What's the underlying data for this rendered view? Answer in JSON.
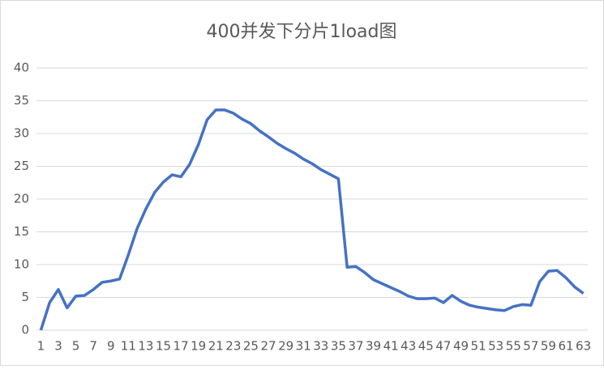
{
  "chart_data": {
    "type": "line",
    "title": "400并发下分片1load图",
    "categories": [
      "1",
      null,
      "3",
      null,
      "5",
      null,
      "7",
      null,
      "9",
      null,
      "11",
      null,
      "13",
      null,
      "15",
      null,
      "17",
      null,
      "19",
      null,
      "21",
      null,
      "23",
      null,
      "25",
      null,
      "27",
      null,
      "29",
      null,
      "31",
      null,
      "33",
      null,
      "35",
      null,
      "37",
      null,
      "39",
      null,
      "41",
      null,
      "43",
      null,
      "45",
      null,
      "47",
      null,
      "49",
      null,
      "51",
      null,
      "53",
      null,
      "55",
      null,
      "57",
      null,
      "59",
      null,
      "61",
      null,
      "63"
    ],
    "series": [
      {
        "name": "load",
        "color": "#4472c4",
        "values": [
          0,
          4.2,
          6.2,
          3.4,
          5.2,
          5.3,
          6.2,
          7.3,
          7.5,
          7.8,
          11.5,
          15.5,
          18.5,
          21,
          22.6,
          23.7,
          23.4,
          25.3,
          28.3,
          32.1,
          33.6,
          33.6,
          33.1,
          32.2,
          31.5,
          30.4,
          29.5,
          28.5,
          27.7,
          27,
          26.1,
          25.4,
          24.5,
          23.8,
          23.1,
          9.6,
          9.7,
          8.8,
          7.7,
          7.1,
          6.5,
          5.9,
          5.2,
          4.8,
          4.8,
          4.9,
          4.2,
          5.3,
          4.4,
          3.8,
          3.5,
          3.3,
          3.1,
          3.0,
          3.6,
          3.9,
          3.8,
          7.4,
          9.0,
          9.1,
          8.0,
          6.6,
          5.6
        ]
      }
    ],
    "ylim": [
      0,
      40
    ],
    "yticks": [
      0,
      5,
      10,
      15,
      20,
      25,
      30,
      35,
      40
    ],
    "grid": true
  }
}
